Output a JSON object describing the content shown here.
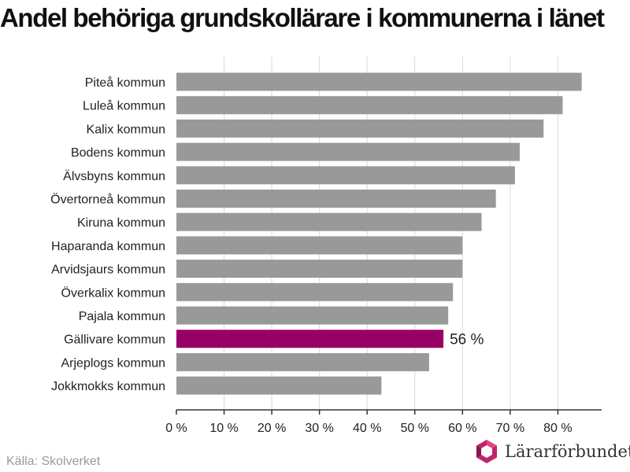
{
  "title": "Andel behöriga grundskollärare i kommunerna i länet",
  "source": "Källa: Skolverket",
  "brand": {
    "name": "Lärarförbundet",
    "logo_icon": "lararforbundet-logo-icon"
  },
  "colors": {
    "bar": "#999999",
    "highlight": "#990066",
    "grid": "#d9d9d9",
    "axis": "#333333"
  },
  "chart_data": {
    "type": "bar",
    "orientation": "horizontal",
    "categories": [
      "Piteå kommun",
      "Luleå kommun",
      "Kalix kommun",
      "Bodens kommun",
      "Älvsbyns kommun",
      "Övertorneå kommun",
      "Kiruna kommun",
      "Haparanda kommun",
      "Arvidsjaurs kommun",
      "Överkalix kommun",
      "Pajala kommun",
      "Gällivare kommun",
      "Arjeplogs kommun",
      "Jokkmokks kommun"
    ],
    "values": [
      85,
      81,
      77,
      72,
      71,
      67,
      64,
      60,
      60,
      58,
      57,
      56,
      53,
      43
    ],
    "highlight": {
      "category": "Gällivare kommun",
      "label": "56 %"
    },
    "xticks": [
      0,
      10,
      20,
      30,
      40,
      50,
      60,
      70,
      80
    ],
    "xtick_labels": [
      "0 %",
      "10 %",
      "20 %",
      "30 %",
      "40 %",
      "50 %",
      "60 %",
      "70 %",
      "80 %"
    ],
    "xlim": [
      0,
      89
    ],
    "grid": true,
    "xlabel": "",
    "ylabel": ""
  }
}
